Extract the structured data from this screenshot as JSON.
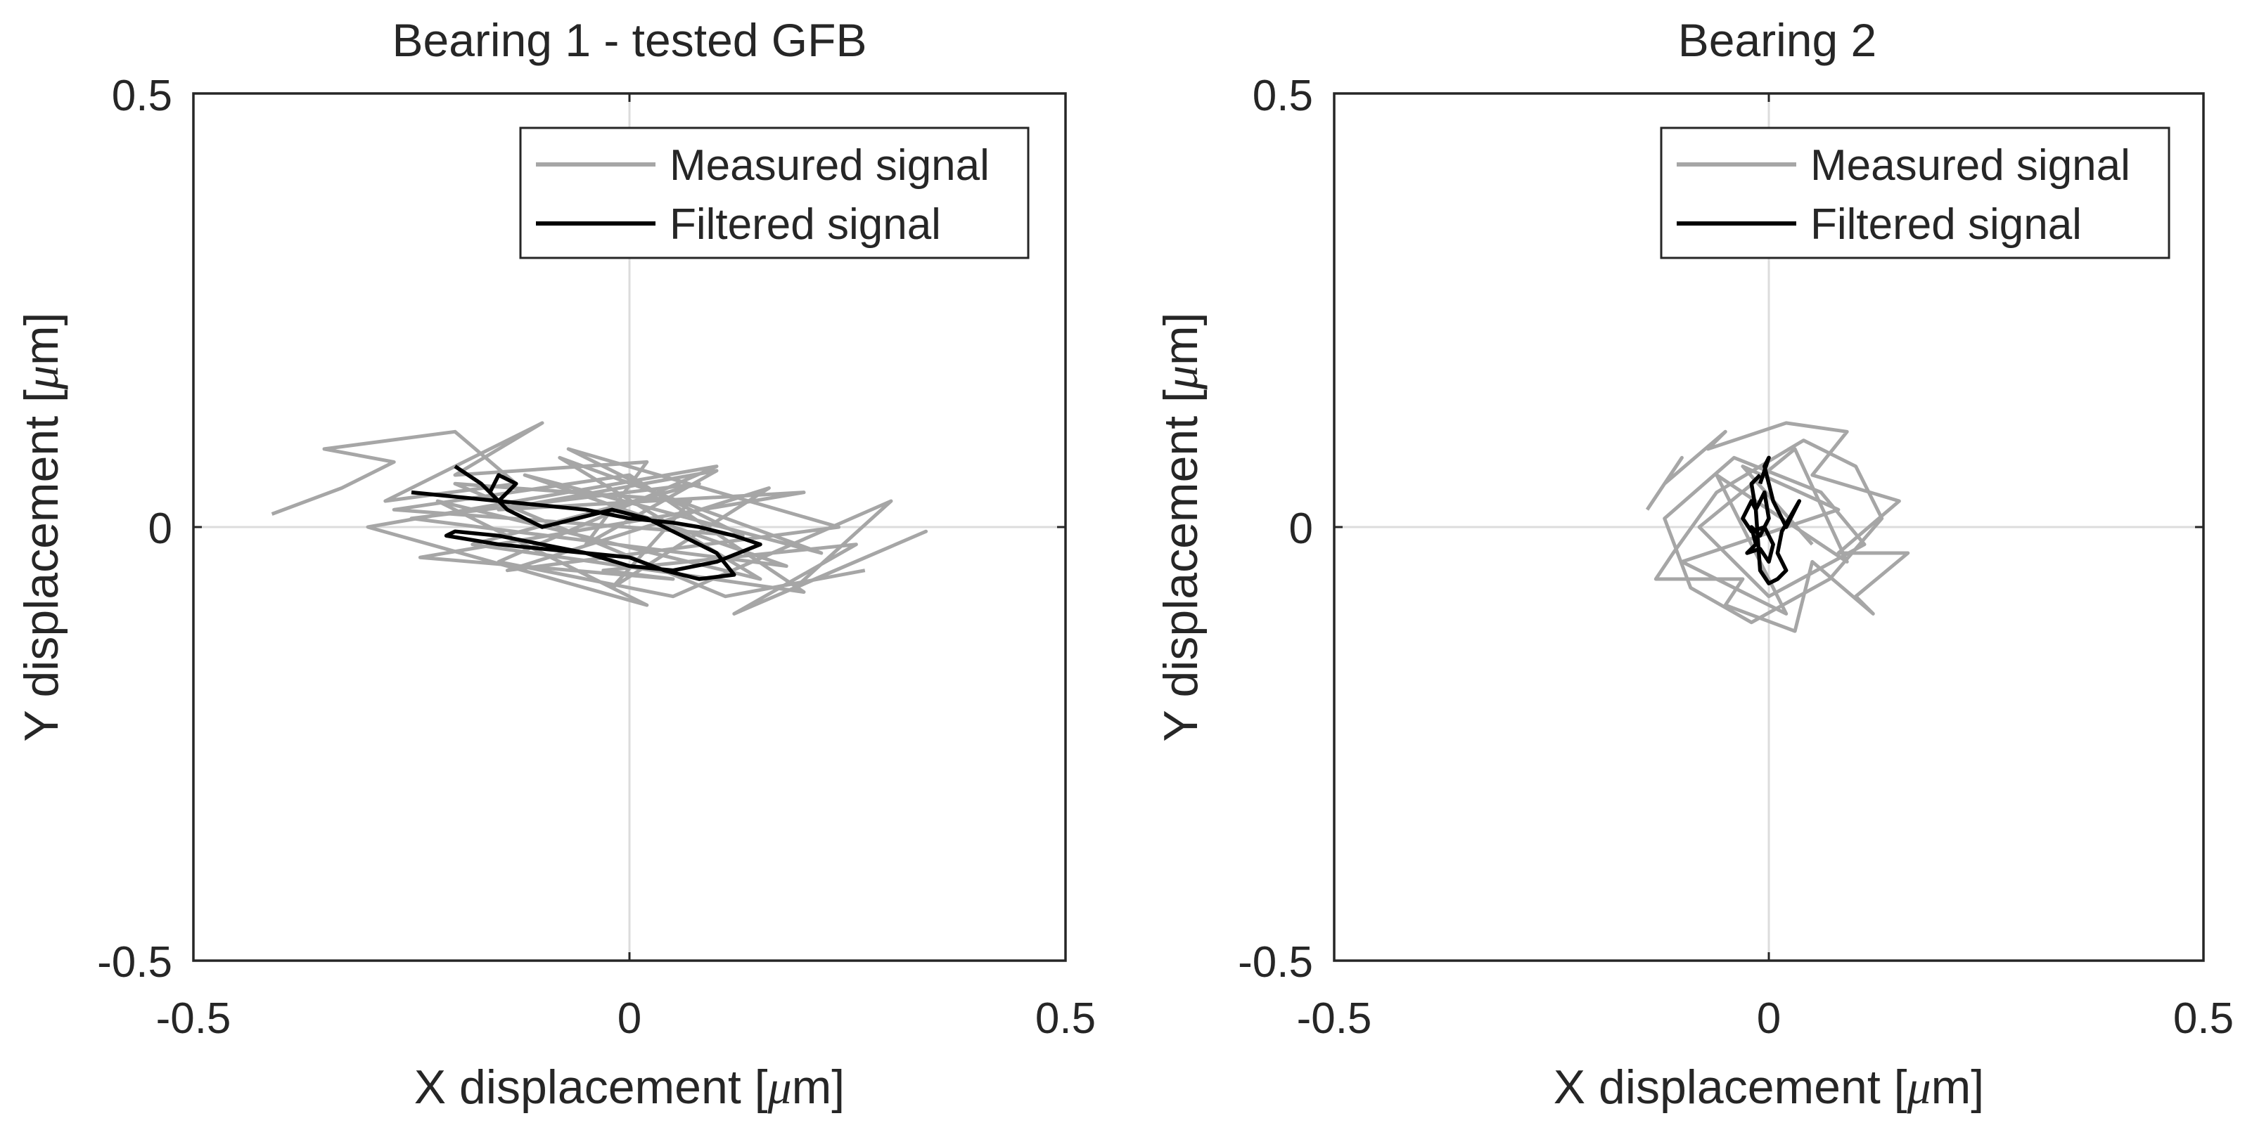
{
  "chart_data": [
    {
      "type": "line",
      "title": "Bearing 1 - tested GFB",
      "xlabel": "X displacement [",
      "ylabel": "Y displacement [",
      "unit_symbol": "μ",
      "unit_suffix": "m]",
      "xlim": [
        -0.5,
        0.5
      ],
      "ylim": [
        -0.5,
        0.5
      ],
      "xticks": [
        "-0.5",
        "0",
        "0.5"
      ],
      "yticks": [
        "0.5",
        "0",
        "-0.5"
      ],
      "grid": "zero lines only",
      "legend": "top-right",
      "series": [
        {
          "name": "Measured signal",
          "color": "#a6a6a6",
          "x": [
            -0.41,
            -0.33,
            -0.27,
            -0.35,
            -0.2,
            -0.13,
            -0.28,
            -0.1,
            -0.2,
            0.02,
            -0.05,
            0.1,
            -0.15,
            0.2,
            -0.24,
            0.05,
            -0.03,
            0.26,
            0.12,
            0.34,
            0.19,
            0.3,
            0.05,
            -0.15,
            0.1,
            -0.3,
            0.02,
            -0.22,
            0.15,
            -0.08,
            0.22,
            -0.12,
            0.18,
            -0.25,
            0.08,
            -0.18,
            0.2,
            0.0,
            -0.27,
            0.13,
            -0.07,
            0.24,
            -0.14,
            0.16,
            -0.02,
            0.07,
            -0.2,
            0.11,
            0.27
          ],
          "y": [
            0.015,
            0.045,
            0.075,
            0.09,
            0.11,
            0.05,
            0.03,
            0.12,
            0.06,
            0.075,
            -0.02,
            0.065,
            0.02,
            0.04,
            -0.035,
            -0.06,
            -0.05,
            -0.02,
            -0.1,
            -0.005,
            -0.07,
            0.03,
            -0.08,
            -0.04,
            0.07,
            0.0,
            -0.09,
            0.03,
            -0.06,
            0.08,
            -0.03,
            0.06,
            -0.045,
            0.01,
            0.05,
            -0.02,
            -0.075,
            0.06,
            0.02,
            -0.01,
            0.09,
            0.0,
            -0.05,
            0.045,
            -0.07,
            0.03,
            0.05,
            -0.08,
            -0.05
          ]
        },
        {
          "name": "Filtered signal",
          "color": "#000000",
          "x": [
            -0.25,
            -0.2,
            -0.15,
            -0.1,
            -0.05,
            0.0,
            0.05,
            0.08,
            0.12,
            0.15,
            0.1,
            0.05,
            0.0,
            -0.05,
            -0.1,
            -0.15,
            -0.2,
            -0.21,
            -0.15,
            -0.1,
            -0.05,
            0.0,
            0.04,
            0.08,
            0.12,
            0.1,
            0.06,
            0.02,
            -0.02,
            -0.06,
            -0.1,
            -0.14,
            -0.16,
            -0.15,
            -0.13,
            -0.15,
            -0.17,
            -0.2
          ],
          "y": [
            0.04,
            0.035,
            0.03,
            0.025,
            0.02,
            0.01,
            0.005,
            0.0,
            -0.01,
            -0.02,
            -0.04,
            -0.05,
            -0.045,
            -0.03,
            -0.02,
            -0.01,
            -0.005,
            -0.01,
            -0.02,
            -0.025,
            -0.03,
            -0.035,
            -0.05,
            -0.06,
            -0.055,
            -0.03,
            -0.01,
            0.01,
            0.02,
            0.01,
            0.0,
            0.02,
            0.04,
            0.06,
            0.05,
            0.03,
            0.05,
            0.07
          ]
        }
      ]
    },
    {
      "type": "line",
      "title": "Bearing 2",
      "xlabel": "X displacement [",
      "ylabel": "Y displacement [",
      "unit_symbol": "μ",
      "unit_suffix": "m]",
      "xlim": [
        -0.5,
        0.5
      ],
      "ylim": [
        -0.5,
        0.5
      ],
      "xticks": [
        "-0.5",
        "0",
        "0.5"
      ],
      "yticks": [
        "0.5",
        "0",
        "-0.5"
      ],
      "grid": "zero lines only",
      "legend": "top-right",
      "series": [
        {
          "name": "Measured signal",
          "color": "#a6a6a6",
          "x": [
            -0.14,
            -0.1,
            -0.12,
            -0.05,
            -0.07,
            0.02,
            0.09,
            0.05,
            0.15,
            0.08,
            0.16,
            0.1,
            0.12,
            0.05,
            0.03,
            -0.05,
            -0.03,
            -0.13,
            -0.11,
            -0.06,
            0.04,
            0.1,
            0.13,
            0.07,
            -0.02,
            -0.09,
            -0.12,
            -0.04,
            0.06,
            0.11,
            0.0,
            -0.08,
            0.03,
            0.09,
            -0.06,
            0.02,
            -0.1,
            0.08,
            -0.03,
            0.05
          ],
          "y": [
            0.02,
            0.08,
            0.05,
            0.11,
            0.09,
            0.12,
            0.11,
            0.06,
            0.03,
            -0.03,
            -0.03,
            -0.08,
            -0.1,
            -0.04,
            -0.12,
            -0.09,
            -0.06,
            -0.06,
            -0.03,
            0.04,
            0.1,
            0.07,
            0.01,
            -0.06,
            -0.11,
            -0.07,
            0.01,
            0.08,
            0.04,
            -0.02,
            -0.08,
            0.0,
            0.09,
            -0.04,
            0.06,
            -0.1,
            -0.04,
            0.02,
            0.07,
            -0.02
          ]
        },
        {
          "name": "Filtered signal",
          "color": "#000000",
          "x": [
            -0.01,
            -0.02,
            -0.015,
            -0.005,
            0.0,
            -0.01,
            -0.02,
            -0.015,
            -0.025,
            -0.01,
            0.0,
            0.005,
            -0.005,
            -0.02,
            -0.03,
            -0.02,
            -0.015,
            -0.01,
            0.0,
            0.01,
            0.02,
            0.01,
            0.015,
            0.035,
            0.02,
            0.005,
            -0.005,
            0.0,
            -0.01
          ],
          "y": [
            0.06,
            0.05,
            0.02,
            0.04,
            0.01,
            -0.01,
            0.0,
            -0.02,
            -0.03,
            -0.025,
            -0.04,
            -0.02,
            0.0,
            -0.005,
            0.01,
            0.03,
            0.02,
            -0.05,
            -0.065,
            -0.06,
            -0.05,
            -0.03,
            -0.005,
            0.03,
            0.0,
            0.03,
            0.07,
            0.08,
            0.05
          ]
        }
      ]
    }
  ]
}
